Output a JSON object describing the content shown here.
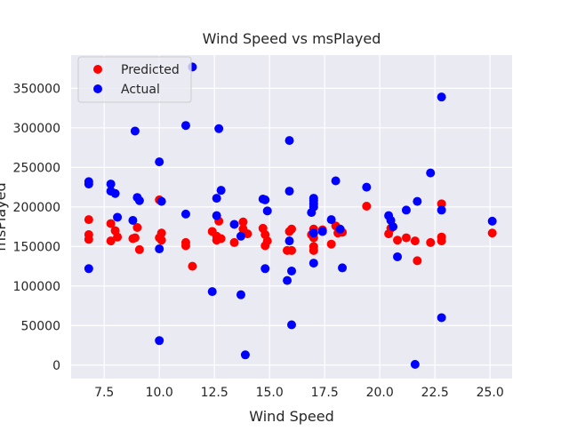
{
  "chart_data": {
    "type": "scatter",
    "title": "Wind Speed vs msPlayed",
    "xlabel": "Wind Speed",
    "ylabel": "msPlayed",
    "xlim": [
      6.0,
      26.0
    ],
    "ylim": [
      -17000,
      392000
    ],
    "xticks": [
      7.5,
      10.0,
      12.5,
      15.0,
      17.5,
      20.0,
      22.5,
      25.0
    ],
    "xtick_labels": [
      "7.5",
      "10.0",
      "12.5",
      "15.0",
      "17.5",
      "20.0",
      "22.5",
      "25.0"
    ],
    "yticks": [
      0,
      50000,
      100000,
      150000,
      200000,
      250000,
      300000,
      350000
    ],
    "ytick_labels": [
      "0",
      "50000",
      "100000",
      "150000",
      "200000",
      "250000",
      "300000",
      "350000"
    ],
    "grid": true,
    "legend_position": "top-left",
    "background_color": "#eaeaf2",
    "series": [
      {
        "name": "Predicted",
        "color": "#ff0000",
        "points": [
          [
            6.8,
            184000
          ],
          [
            6.8,
            165000
          ],
          [
            6.8,
            159000
          ],
          [
            7.8,
            179000
          ],
          [
            7.8,
            157000
          ],
          [
            8.0,
            170000
          ],
          [
            8.1,
            162000
          ],
          [
            8.8,
            160000
          ],
          [
            8.9,
            161000
          ],
          [
            9.0,
            174000
          ],
          [
            9.1,
            146000
          ],
          [
            10.0,
            209000
          ],
          [
            10.0,
            161000
          ],
          [
            10.1,
            167000
          ],
          [
            10.1,
            158000
          ],
          [
            11.2,
            155000
          ],
          [
            11.2,
            151000
          ],
          [
            11.5,
            125000
          ],
          [
            12.4,
            169000
          ],
          [
            12.6,
            163000
          ],
          [
            12.6,
            158000
          ],
          [
            12.7,
            182000
          ],
          [
            12.8,
            160000
          ],
          [
            13.4,
            155000
          ],
          [
            13.8,
            181000
          ],
          [
            13.8,
            172000
          ],
          [
            14.0,
            166000
          ],
          [
            14.7,
            173000
          ],
          [
            14.8,
            165000
          ],
          [
            14.8,
            151000
          ],
          [
            14.9,
            157000
          ],
          [
            15.8,
            145000
          ],
          [
            15.9,
            169000
          ],
          [
            16.0,
            172000
          ],
          [
            16.0,
            145000
          ],
          [
            16.9,
            165000
          ],
          [
            17.0,
            172000
          ],
          [
            17.0,
            161000
          ],
          [
            17.0,
            150000
          ],
          [
            17.0,
            145000
          ],
          [
            17.4,
            171000
          ],
          [
            17.8,
            153000
          ],
          [
            18.0,
            176000
          ],
          [
            18.1,
            167000
          ],
          [
            18.2,
            170000
          ],
          [
            18.3,
            168000
          ],
          [
            19.4,
            201000
          ],
          [
            20.4,
            166000
          ],
          [
            20.5,
            173000
          ],
          [
            20.8,
            158000
          ],
          [
            21.2,
            161000
          ],
          [
            21.6,
            157000
          ],
          [
            21.7,
            132000
          ],
          [
            22.3,
            155000
          ],
          [
            22.8,
            204000
          ],
          [
            22.8,
            162000
          ],
          [
            22.8,
            157000
          ],
          [
            25.1,
            167000
          ]
        ]
      },
      {
        "name": "Actual",
        "color": "#0000ff",
        "points": [
          [
            6.8,
            232000
          ],
          [
            6.8,
            229000
          ],
          [
            6.8,
            122000
          ],
          [
            7.8,
            229000
          ],
          [
            7.8,
            220000
          ],
          [
            8.0,
            217000
          ],
          [
            8.1,
            187000
          ],
          [
            8.8,
            183000
          ],
          [
            8.9,
            296000
          ],
          [
            9.0,
            212000
          ],
          [
            9.1,
            208000
          ],
          [
            10.0,
            257000
          ],
          [
            10.0,
            147000
          ],
          [
            10.0,
            31000
          ],
          [
            10.1,
            207000
          ],
          [
            11.2,
            303000
          ],
          [
            11.2,
            191000
          ],
          [
            11.5,
            377000
          ],
          [
            12.4,
            93000
          ],
          [
            12.6,
            211000
          ],
          [
            12.6,
            189000
          ],
          [
            12.7,
            299000
          ],
          [
            12.8,
            221000
          ],
          [
            13.4,
            178000
          ],
          [
            13.7,
            163000
          ],
          [
            13.7,
            89000
          ],
          [
            13.9,
            13000
          ],
          [
            14.7,
            210000
          ],
          [
            14.8,
            209000
          ],
          [
            14.8,
            122000
          ],
          [
            14.9,
            195000
          ],
          [
            15.8,
            107000
          ],
          [
            15.9,
            284000
          ],
          [
            15.9,
            220000
          ],
          [
            15.9,
            157000
          ],
          [
            16.0,
            119000
          ],
          [
            16.0,
            51000
          ],
          [
            16.9,
            193000
          ],
          [
            17.0,
            211000
          ],
          [
            17.0,
            208000
          ],
          [
            17.0,
            204000
          ],
          [
            17.0,
            200000
          ],
          [
            17.0,
            167000
          ],
          [
            17.0,
            129000
          ],
          [
            17.4,
            169000
          ],
          [
            17.8,
            184000
          ],
          [
            18.0,
            233000
          ],
          [
            18.2,
            172000
          ],
          [
            18.3,
            123000
          ],
          [
            19.4,
            225000
          ],
          [
            20.4,
            189000
          ],
          [
            20.5,
            183000
          ],
          [
            20.6,
            175000
          ],
          [
            20.8,
            137000
          ],
          [
            21.2,
            196000
          ],
          [
            21.6,
            1000
          ],
          [
            21.7,
            207000
          ],
          [
            22.3,
            243000
          ],
          [
            22.8,
            339000
          ],
          [
            22.8,
            196000
          ],
          [
            22.8,
            60000
          ],
          [
            25.1,
            182000
          ]
        ]
      }
    ]
  }
}
